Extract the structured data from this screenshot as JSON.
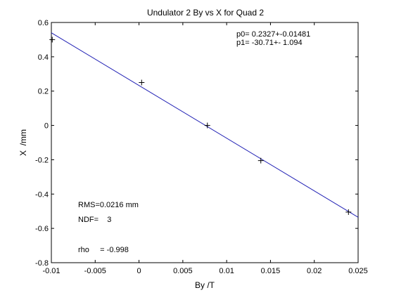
{
  "chart_data": {
    "type": "scatter",
    "title": "Undulator 2 By vs X for Quad 2",
    "xlabel": "By /T",
    "ylabel": "X  /mm",
    "xlim": [
      -0.01,
      0.025
    ],
    "ylim": [
      -0.8,
      0.6
    ],
    "xticks": [
      "-0.01",
      "-0.005",
      "0",
      "0.005",
      "0.01",
      "0.015",
      "0.02",
      "0.025"
    ],
    "yticks": [
      "-0.8",
      "-0.6",
      "-0.4",
      "-0.2",
      "0",
      "0.2",
      "0.4",
      "0.6"
    ],
    "xtick_values": [
      -0.01,
      -0.005,
      0,
      0.005,
      0.01,
      0.015,
      0.02,
      0.025
    ],
    "ytick_values": [
      -0.8,
      -0.6,
      -0.4,
      -0.2,
      0,
      0.2,
      0.4,
      0.6
    ],
    "grid": false,
    "series": [
      {
        "marker": "plus",
        "color": "#000000",
        "points": [
          {
            "x": -0.0099,
            "y": 0.5
          },
          {
            "x": 0.0003,
            "y": 0.25
          },
          {
            "x": 0.0078,
            "y": 0.0
          },
          {
            "x": 0.0139,
            "y": -0.205
          },
          {
            "x": 0.0239,
            "y": -0.505
          }
        ]
      },
      {
        "type": "line",
        "color": "#1f1fb4",
        "intercept": 0.2327,
        "slope": -30.71
      }
    ],
    "annotations": {
      "p0": "p0= 0.2327+-0.01481",
      "p1": "p1= -30.71+- 1.094",
      "rms": "RMS=0.0216 mm",
      "ndf": "NDF=    3",
      "rho": "rho     = -0.998"
    }
  }
}
